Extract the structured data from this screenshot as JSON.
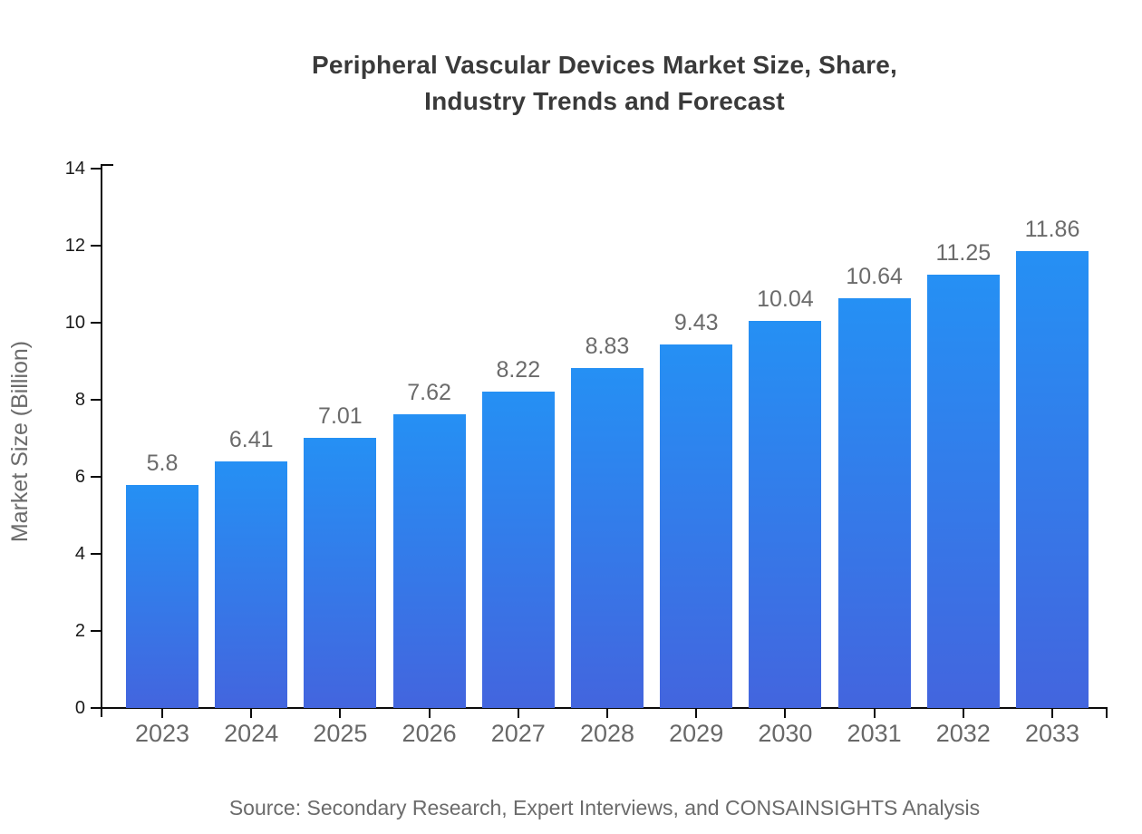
{
  "title": {
    "lines": [
      "Peripheral Vascular Devices Market Size, Share,",
      "Industry Trends and Forecast"
    ]
  },
  "source": "Source: Secondary Research, Expert Interviews, and CONSAINSIGHTS Analysis",
  "colors": {
    "bar_gradient_top": "#2590F4",
    "bar_gradient_bottom": "#4365DE",
    "axis": "#0B0B0B",
    "title_text": "#3A3A3A",
    "x_tick_label": "#686868",
    "y_tick_label": "#1A1A1A",
    "value_label": "#6B6B6B",
    "y_axis_title": "#6B6B6B",
    "source_text": "#6B6B6B",
    "background": "#FFFFFF"
  },
  "chart_data": {
    "type": "bar",
    "title": "Peripheral Vascular Devices Market Size, Share, Industry Trends and Forecast",
    "categories": [
      "2023",
      "2024",
      "2025",
      "2026",
      "2027",
      "2028",
      "2029",
      "2030",
      "2031",
      "2032",
      "2033"
    ],
    "values": [
      5.8,
      6.41,
      7.01,
      7.62,
      8.22,
      8.83,
      9.43,
      10.04,
      10.64,
      11.25,
      11.86
    ],
    "data_labels": [
      "5.8",
      "6.41",
      "7.01",
      "7.62",
      "8.22",
      "8.83",
      "9.43",
      "10.04",
      "10.64",
      "11.25",
      "11.86"
    ],
    "xlabel": "",
    "ylabel": "Market Size (Billion)",
    "ylim": [
      0,
      14
    ],
    "yticks": [
      0,
      2,
      4,
      6,
      8,
      10,
      12,
      14
    ],
    "grid": false,
    "legend": false,
    "data_labels_shown": true,
    "source_note": "Source: Secondary Research, Expert Interviews, and CONSAINSIGHTS Analysis"
  }
}
